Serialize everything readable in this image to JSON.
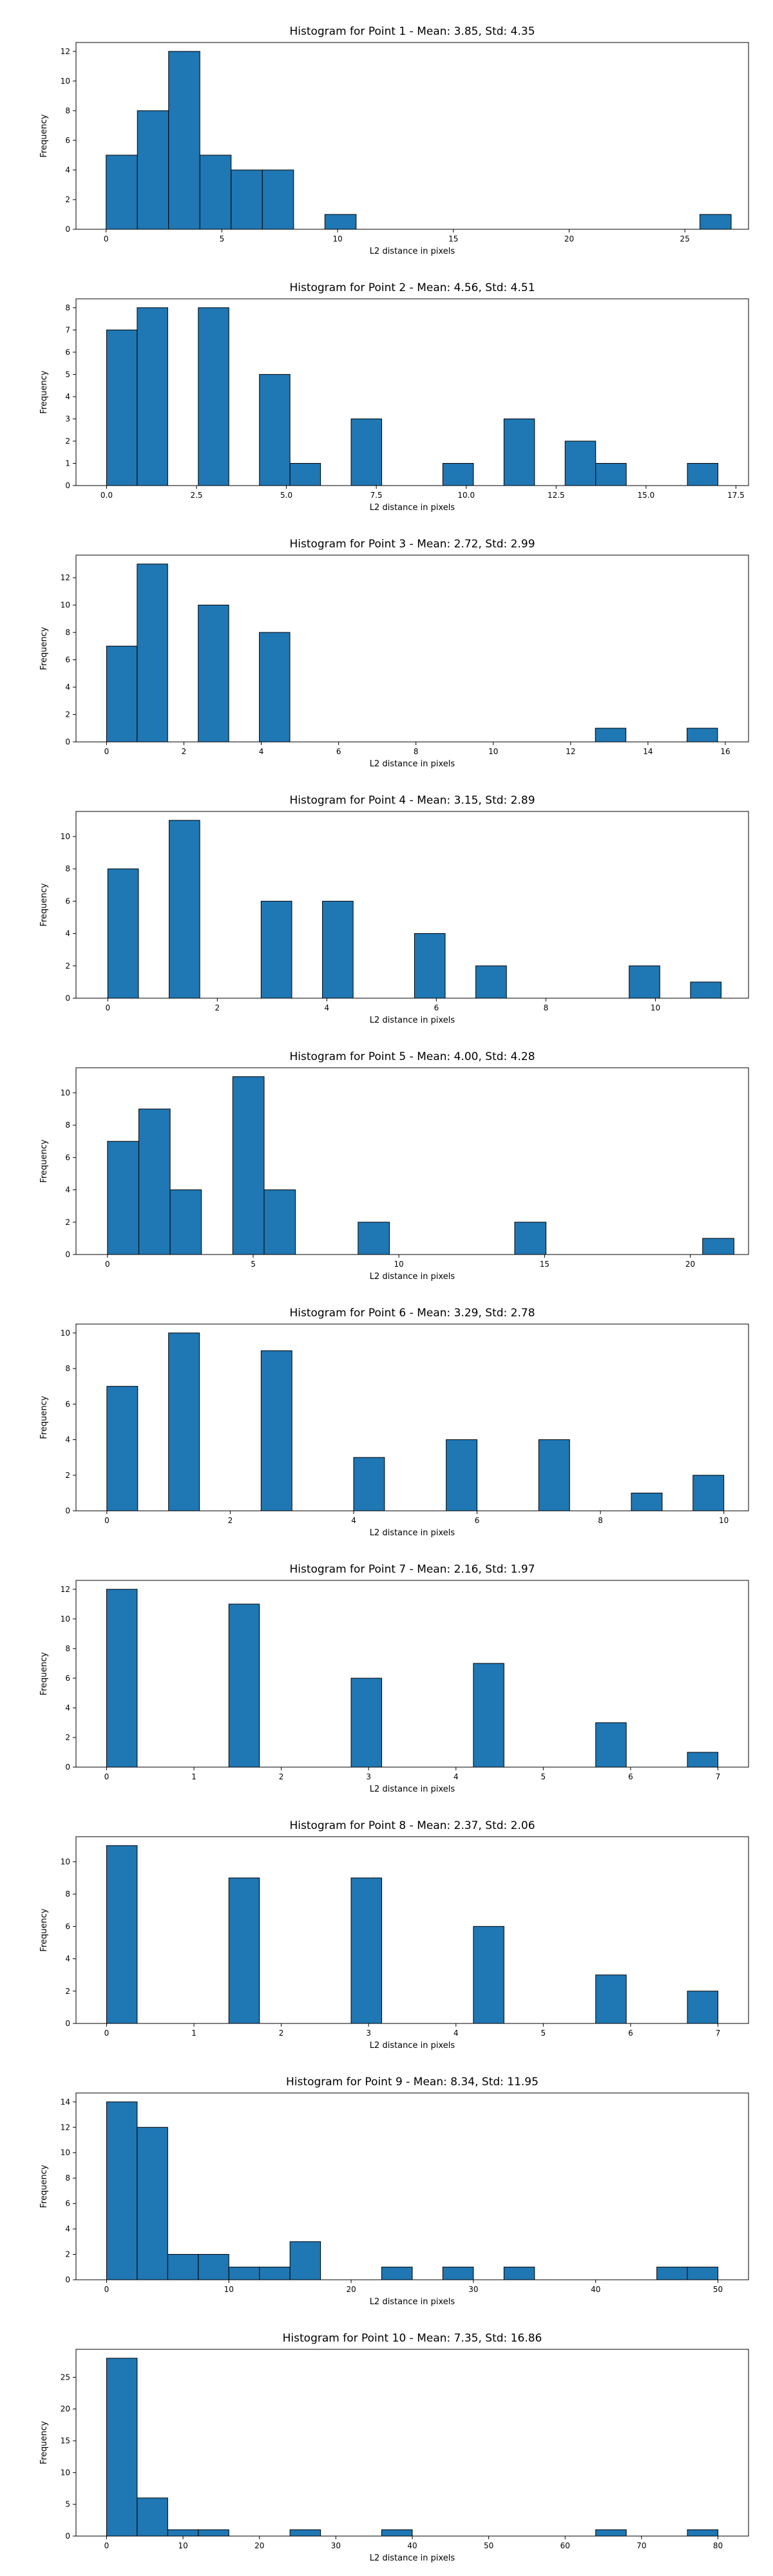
{
  "chart_data": [
    {
      "type": "bar",
      "title": "Histogram for Point 1 - Mean: 3.85, Std: 4.35",
      "xlabel": "L2 distance in pixels",
      "ylabel": "Frequency",
      "xlim": [
        -1.3,
        27.75
      ],
      "ylim": [
        0,
        12.6
      ],
      "xticks": [
        0,
        5,
        10,
        15,
        20,
        25
      ],
      "xtick_labels": [
        "0",
        "5",
        "10",
        "15",
        "20",
        "25"
      ],
      "yticks": [
        0,
        2,
        4,
        6,
        8,
        10,
        12
      ],
      "ytick_labels": [
        "0",
        "2",
        "4",
        "6",
        "8",
        "10",
        "12"
      ],
      "bin_width": 1.35,
      "grid": false,
      "bins": [
        {
          "x": 0,
          "count": 5
        },
        {
          "x": 1.35,
          "count": 8
        },
        {
          "x": 2.7,
          "count": 12
        },
        {
          "x": 4.05,
          "count": 5
        },
        {
          "x": 5.4,
          "count": 4
        },
        {
          "x": 6.75,
          "count": 4
        },
        {
          "x": 9.45,
          "count": 1
        },
        {
          "x": 25.65,
          "count": 1
        }
      ]
    },
    {
      "type": "bar",
      "title": "Histogram for Point 2 - Mean: 4.56, Std: 4.51",
      "xlabel": "L2 distance in pixels",
      "ylabel": "Frequency",
      "xlim": [
        -0.85,
        17.85
      ],
      "ylim": [
        0,
        8.4
      ],
      "xticks": [
        0,
        2.5,
        5,
        7.5,
        10,
        12.5,
        15,
        17.5
      ],
      "xtick_labels": [
        "0.0",
        "2.5",
        "5.0",
        "7.5",
        "10.0",
        "12.5",
        "15.0",
        "17.5"
      ],
      "yticks": [
        0,
        1,
        2,
        3,
        4,
        5,
        6,
        7,
        8
      ],
      "ytick_labels": [
        "0",
        "1",
        "2",
        "3",
        "4",
        "5",
        "6",
        "7",
        "8"
      ],
      "bin_width": 0.85,
      "grid": false,
      "bins": [
        {
          "x": 0,
          "count": 7
        },
        {
          "x": 0.85,
          "count": 8
        },
        {
          "x": 2.55,
          "count": 8
        },
        {
          "x": 4.25,
          "count": 5
        },
        {
          "x": 5.1,
          "count": 1
        },
        {
          "x": 6.8,
          "count": 3
        },
        {
          "x": 9.35,
          "count": 1
        },
        {
          "x": 11.05,
          "count": 3
        },
        {
          "x": 12.75,
          "count": 2
        },
        {
          "x": 13.6,
          "count": 1
        },
        {
          "x": 16.15,
          "count": 1
        }
      ]
    },
    {
      "type": "bar",
      "title": "Histogram for Point 3 - Mean: 2.72, Std: 2.99",
      "xlabel": "L2 distance in pixels",
      "ylabel": "Frequency",
      "xlim": [
        -0.79,
        16.6
      ],
      "ylim": [
        0,
        13.65
      ],
      "xticks": [
        0,
        2,
        4,
        6,
        8,
        10,
        12,
        14,
        16
      ],
      "xtick_labels": [
        "0",
        "2",
        "4",
        "6",
        "8",
        "10",
        "12",
        "14",
        "16"
      ],
      "yticks": [
        0,
        2,
        4,
        6,
        8,
        10,
        12
      ],
      "ytick_labels": [
        "0",
        "2",
        "4",
        "6",
        "8",
        "10",
        "12"
      ],
      "bin_width": 0.79,
      "grid": false,
      "bins": [
        {
          "x": 0,
          "count": 7
        },
        {
          "x": 0.79,
          "count": 13
        },
        {
          "x": 2.37,
          "count": 10
        },
        {
          "x": 3.95,
          "count": 8
        },
        {
          "x": 12.64,
          "count": 1
        },
        {
          "x": 15.01,
          "count": 1
        }
      ]
    },
    {
      "type": "bar",
      "title": "Histogram for Point 4 - Mean: 3.15, Std: 2.89",
      "xlabel": "L2 distance in pixels",
      "ylabel": "Frequency",
      "xlim": [
        -0.58,
        11.7
      ],
      "ylim": [
        0,
        11.55
      ],
      "xticks": [
        0,
        2,
        4,
        6,
        8,
        10
      ],
      "xtick_labels": [
        "0",
        "2",
        "4",
        "6",
        "8",
        "10"
      ],
      "yticks": [
        0,
        2,
        4,
        6,
        8,
        10
      ],
      "ytick_labels": [
        "0",
        "2",
        "4",
        "6",
        "8",
        "10"
      ],
      "bin_width": 0.56,
      "grid": false,
      "bins": [
        {
          "x": 0,
          "count": 8
        },
        {
          "x": 1.12,
          "count": 11
        },
        {
          "x": 2.8,
          "count": 6
        },
        {
          "x": 3.92,
          "count": 6
        },
        {
          "x": 5.6,
          "count": 4
        },
        {
          "x": 6.72,
          "count": 2
        },
        {
          "x": 9.52,
          "count": 2
        },
        {
          "x": 10.64,
          "count": 1
        }
      ]
    },
    {
      "type": "bar",
      "title": "Histogram for Point 5 - Mean: 4.00, Std: 4.28",
      "xlabel": "L2 distance in pixels",
      "ylabel": "Frequency",
      "xlim": [
        -1.08,
        22.0
      ],
      "ylim": [
        0,
        11.55
      ],
      "xticks": [
        0,
        5,
        10,
        15,
        20
      ],
      "xtick_labels": [
        "0",
        "5",
        "10",
        "15",
        "20"
      ],
      "yticks": [
        0,
        2,
        4,
        6,
        8,
        10
      ],
      "ytick_labels": [
        "0",
        "2",
        "4",
        "6",
        "8",
        "10"
      ],
      "bin_width": 1.075,
      "grid": false,
      "bins": [
        {
          "x": 0,
          "count": 7
        },
        {
          "x": 1.075,
          "count": 9
        },
        {
          "x": 2.15,
          "count": 4
        },
        {
          "x": 4.3,
          "count": 11
        },
        {
          "x": 5.375,
          "count": 4
        },
        {
          "x": 8.6,
          "count": 2
        },
        {
          "x": 13.975,
          "count": 2
        },
        {
          "x": 20.425,
          "count": 1
        }
      ]
    },
    {
      "type": "bar",
      "title": "Histogram for Point 6 - Mean: 3.29, Std: 2.78",
      "xlabel": "L2 distance in pixels",
      "ylabel": "Frequency",
      "xlim": [
        -0.5,
        10.4
      ],
      "ylim": [
        0,
        10.5
      ],
      "xticks": [
        0,
        2,
        4,
        6,
        8,
        10
      ],
      "xtick_labels": [
        "0",
        "2",
        "4",
        "6",
        "8",
        "10"
      ],
      "yticks": [
        0,
        2,
        4,
        6,
        8,
        10
      ],
      "ytick_labels": [
        "0",
        "2",
        "4",
        "6",
        "8",
        "10"
      ],
      "bin_width": 0.5,
      "grid": false,
      "bins": [
        {
          "x": 0,
          "count": 7
        },
        {
          "x": 1.0,
          "count": 10
        },
        {
          "x": 2.5,
          "count": 9
        },
        {
          "x": 4.0,
          "count": 3
        },
        {
          "x": 5.5,
          "count": 4
        },
        {
          "x": 7.0,
          "count": 4
        },
        {
          "x": 8.5,
          "count": 1
        },
        {
          "x": 9.5,
          "count": 2
        }
      ]
    },
    {
      "type": "bar",
      "title": "Histogram for Point 7 - Mean: 2.16, Std: 1.97",
      "xlabel": "L2 distance in pixels",
      "ylabel": "Frequency",
      "xlim": [
        -0.35,
        7.35
      ],
      "ylim": [
        0,
        12.6
      ],
      "xticks": [
        0,
        1,
        2,
        3,
        4,
        5,
        6,
        7
      ],
      "xtick_labels": [
        "0",
        "1",
        "2",
        "3",
        "4",
        "5",
        "6",
        "7"
      ],
      "yticks": [
        0,
        2,
        4,
        6,
        8,
        10,
        12
      ],
      "ytick_labels": [
        "0",
        "2",
        "4",
        "6",
        "8",
        "10",
        "12"
      ],
      "bin_width": 0.35,
      "grid": false,
      "bins": [
        {
          "x": 0,
          "count": 12
        },
        {
          "x": 1.4,
          "count": 11
        },
        {
          "x": 2.8,
          "count": 6
        },
        {
          "x": 4.2,
          "count": 7
        },
        {
          "x": 5.6,
          "count": 3
        },
        {
          "x": 6.65,
          "count": 1
        }
      ]
    },
    {
      "type": "bar",
      "title": "Histogram for Point 8 - Mean: 2.37, Std: 2.06",
      "xlabel": "L2 distance in pixels",
      "ylabel": "Frequency",
      "xlim": [
        -0.35,
        7.35
      ],
      "ylim": [
        0,
        11.55
      ],
      "xticks": [
        0,
        1,
        2,
        3,
        4,
        5,
        6,
        7
      ],
      "xtick_labels": [
        "0",
        "1",
        "2",
        "3",
        "4",
        "5",
        "6",
        "7"
      ],
      "yticks": [
        0,
        2,
        4,
        6,
        8,
        10
      ],
      "ytick_labels": [
        "0",
        "2",
        "4",
        "6",
        "8",
        "10"
      ],
      "bin_width": 0.35,
      "grid": false,
      "bins": [
        {
          "x": 0,
          "count": 11
        },
        {
          "x": 1.4,
          "count": 9
        },
        {
          "x": 2.8,
          "count": 9
        },
        {
          "x": 4.2,
          "count": 6
        },
        {
          "x": 5.6,
          "count": 3
        },
        {
          "x": 6.65,
          "count": 2
        }
      ]
    },
    {
      "type": "bar",
      "title": "Histogram for Point 9 - Mean: 8.34, Std: 11.95",
      "xlabel": "L2 distance in pixels",
      "ylabel": "Frequency",
      "xlim": [
        -2.5,
        52.5
      ],
      "ylim": [
        0,
        14.7
      ],
      "xticks": [
        0,
        10,
        20,
        30,
        40,
        50
      ],
      "xtick_labels": [
        "0",
        "10",
        "20",
        "30",
        "40",
        "50"
      ],
      "yticks": [
        0,
        2,
        4,
        6,
        8,
        10,
        12,
        14
      ],
      "ytick_labels": [
        "0",
        "2",
        "4",
        "6",
        "8",
        "10",
        "12",
        "14"
      ],
      "bin_width": 2.5,
      "grid": false,
      "bins": [
        {
          "x": 0,
          "count": 14
        },
        {
          "x": 2.5,
          "count": 12
        },
        {
          "x": 5.0,
          "count": 2
        },
        {
          "x": 7.5,
          "count": 2
        },
        {
          "x": 10.0,
          "count": 1
        },
        {
          "x": 12.5,
          "count": 1
        },
        {
          "x": 15.0,
          "count": 3
        },
        {
          "x": 22.5,
          "count": 1
        },
        {
          "x": 27.5,
          "count": 1
        },
        {
          "x": 32.5,
          "count": 1
        },
        {
          "x": 45.0,
          "count": 1
        },
        {
          "x": 47.5,
          "count": 1
        }
      ]
    },
    {
      "type": "bar",
      "title": "Histogram for Point 10 - Mean: 7.35, Std: 16.86",
      "xlabel": "L2 distance in pixels",
      "ylabel": "Frequency",
      "xlim": [
        -4.0,
        84.0
      ],
      "ylim": [
        0,
        29.4
      ],
      "xticks": [
        0,
        10,
        20,
        30,
        40,
        50,
        60,
        70,
        80
      ],
      "xtick_labels": [
        "0",
        "10",
        "20",
        "30",
        "40",
        "50",
        "60",
        "70",
        "80"
      ],
      "yticks": [
        0,
        5,
        10,
        15,
        20,
        25
      ],
      "ytick_labels": [
        "0",
        "5",
        "10",
        "15",
        "20",
        "25"
      ],
      "bin_width": 4.0,
      "grid": false,
      "bins": [
        {
          "x": 0,
          "count": 28
        },
        {
          "x": 4.0,
          "count": 6
        },
        {
          "x": 8.0,
          "count": 1
        },
        {
          "x": 12.0,
          "count": 1
        },
        {
          "x": 24.0,
          "count": 1
        },
        {
          "x": 36.0,
          "count": 1
        },
        {
          "x": 64.0,
          "count": 1
        },
        {
          "x": 76.0,
          "count": 1
        }
      ]
    }
  ]
}
